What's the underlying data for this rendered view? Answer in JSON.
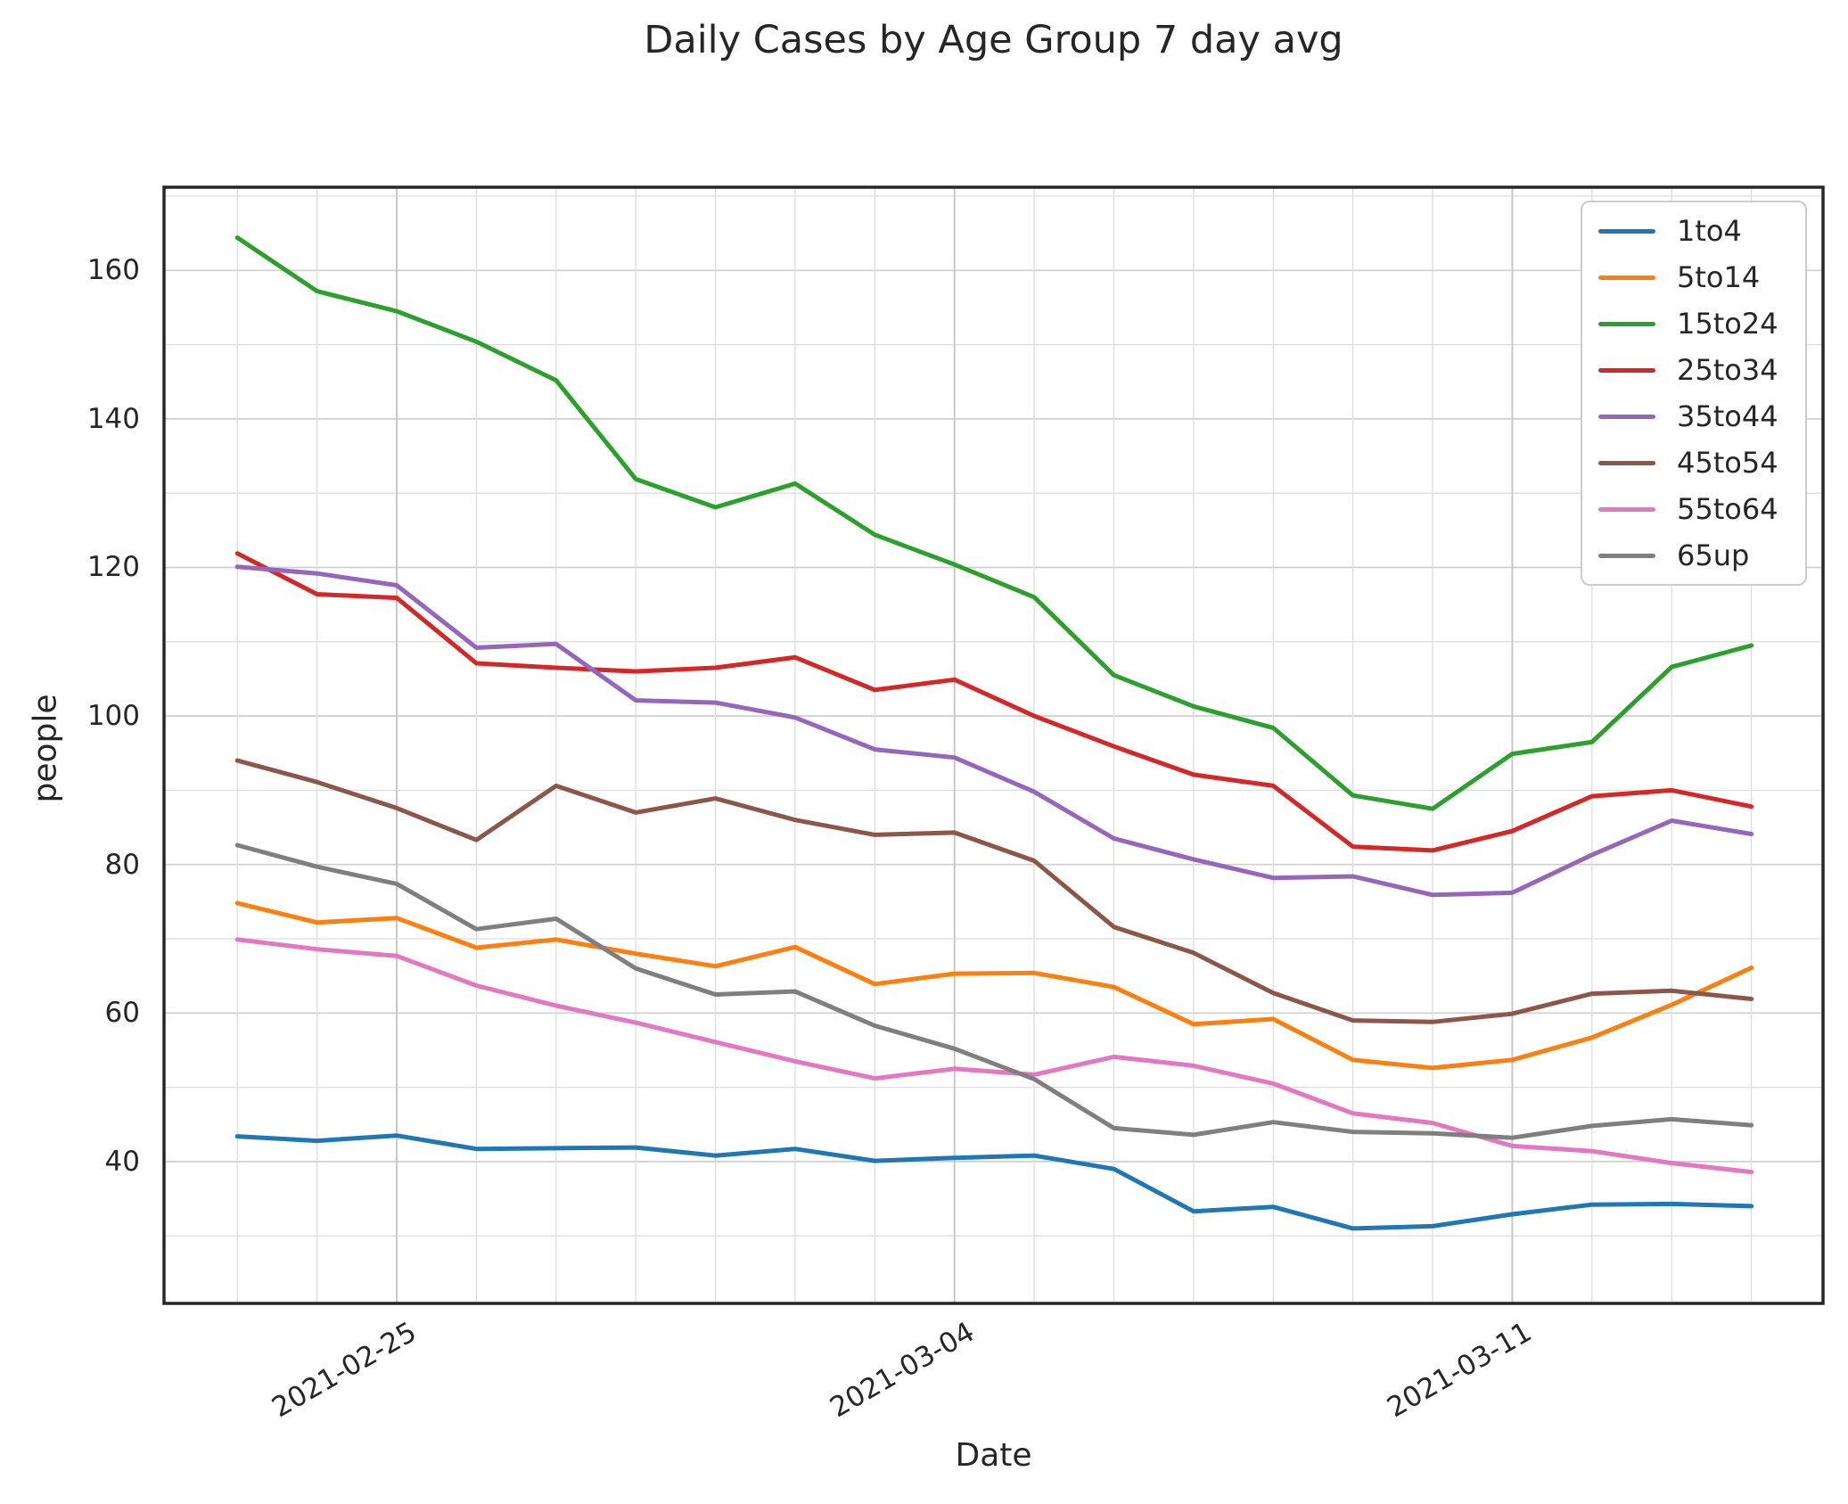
{
  "title": "Daily Cases by Age Group 7 day avg",
  "xlabel": "Date",
  "ylabel": "people",
  "chart_data": {
    "type": "line",
    "x": [
      "2021-02-23",
      "2021-02-24",
      "2021-02-25",
      "2021-02-26",
      "2021-02-27",
      "2021-02-28",
      "2021-03-01",
      "2021-03-02",
      "2021-03-03",
      "2021-03-04",
      "2021-03-05",
      "2021-03-06",
      "2021-03-07",
      "2021-03-08",
      "2021-03-09",
      "2021-03-10",
      "2021-03-11",
      "2021-03-12",
      "2021-03-13",
      "2021-03-14"
    ],
    "series": [
      {
        "name": "1to4",
        "color": "#1f77b4",
        "values": [
          43.4,
          42.8,
          43.5,
          41.7,
          41.8,
          41.9,
          40.8,
          41.7,
          40.1,
          40.5,
          40.8,
          39.0,
          33.3,
          33.9,
          31.0,
          31.3,
          32.9,
          34.2,
          34.3,
          34.0
        ]
      },
      {
        "name": "5to14",
        "color": "#ff7f0e",
        "values": [
          74.8,
          72.2,
          72.8,
          68.8,
          69.9,
          68.0,
          66.3,
          68.9,
          63.9,
          65.3,
          65.4,
          63.5,
          58.5,
          59.2,
          53.7,
          52.6,
          53.7,
          56.7,
          61.1,
          66.1
        ]
      },
      {
        "name": "15to24",
        "color": "#2ca02c",
        "values": [
          164.4,
          157.2,
          154.5,
          150.4,
          145.2,
          131.9,
          128.1,
          131.3,
          124.4,
          120.4,
          116.0,
          105.5,
          101.3,
          98.4,
          89.3,
          87.5,
          94.9,
          96.5,
          106.6,
          109.5
        ]
      },
      {
        "name": "25to34",
        "color": "#d62728",
        "values": [
          121.9,
          116.4,
          115.9,
          107.1,
          106.5,
          106.0,
          106.5,
          107.9,
          103.5,
          104.9,
          100.0,
          95.9,
          92.1,
          90.6,
          82.4,
          81.9,
          84.5,
          89.2,
          90.0,
          87.8
        ]
      },
      {
        "name": "35to44",
        "color": "#9467bd",
        "values": [
          120.1,
          119.2,
          117.6,
          109.2,
          109.7,
          102.1,
          101.8,
          99.8,
          95.5,
          94.4,
          89.8,
          83.5,
          80.7,
          78.2,
          78.4,
          75.9,
          76.2,
          81.3,
          85.9,
          84.1
        ]
      },
      {
        "name": "45to54",
        "color": "#8c564b",
        "values": [
          94.0,
          91.1,
          87.6,
          83.3,
          90.6,
          87.0,
          88.9,
          86.0,
          84.0,
          84.3,
          80.5,
          71.6,
          68.1,
          62.7,
          59.0,
          58.8,
          59.9,
          62.6,
          63.0,
          61.9
        ]
      },
      {
        "name": "55to64",
        "color": "#e377c2",
        "values": [
          69.9,
          68.6,
          67.7,
          63.7,
          61.0,
          58.7,
          56.1,
          53.5,
          51.2,
          52.5,
          51.7,
          54.1,
          52.9,
          50.5,
          46.5,
          45.2,
          42.1,
          41.4,
          39.8,
          38.6
        ]
      },
      {
        "name": "65up",
        "color": "#7f7f7f",
        "values": [
          82.6,
          79.7,
          77.4,
          71.3,
          72.7,
          66.0,
          62.5,
          62.9,
          58.3,
          55.2,
          51.1,
          44.5,
          43.6,
          45.3,
          44.0,
          43.8,
          43.2,
          44.8,
          45.7,
          44.9
        ]
      }
    ],
    "xticks": [
      {
        "label": "2021-02-25",
        "index": 2
      },
      {
        "label": "2021-03-04",
        "index": 9
      },
      {
        "label": "2021-03-11",
        "index": 16
      }
    ],
    "yticks": [
      40,
      60,
      80,
      100,
      120,
      140,
      160
    ],
    "ylim": [
      20.9,
      171.2
    ],
    "xlim_days": [
      -0.92,
      19.9
    ],
    "grid": "minor gridlines every 10 on y, every day on x",
    "legend_position": "upper right"
  }
}
